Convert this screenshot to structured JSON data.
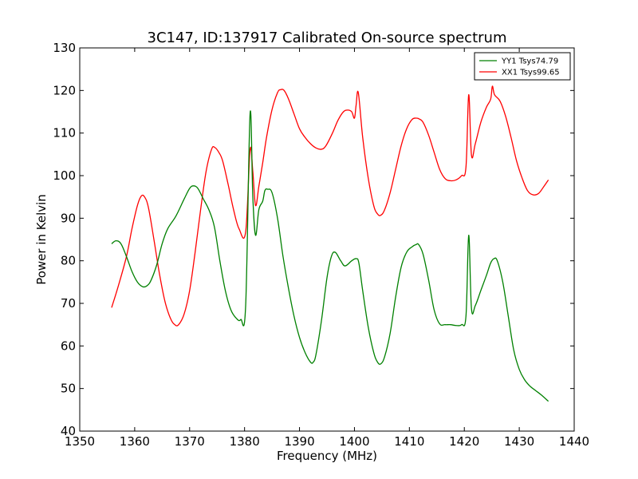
{
  "chart_data": {
    "type": "line",
    "title": "3C147, ID:137917 Calibrated On-source spectrum",
    "xlabel": "Frequency (MHz)",
    "ylabel": "Power in Kelvin",
    "xlim": [
      1350,
      1440
    ],
    "ylim": [
      40,
      130
    ],
    "xticks": [
      1350,
      1360,
      1370,
      1380,
      1390,
      1400,
      1410,
      1420,
      1430,
      1440
    ],
    "yticks": [
      40,
      50,
      60,
      70,
      80,
      90,
      100,
      110,
      120,
      130
    ],
    "grid": false,
    "legend_position": "top-right",
    "series": [
      {
        "name": "YY1 Tsys74.79",
        "color": "#008000",
        "x": [
          1355.8,
          1356.6,
          1357.5,
          1358.5,
          1359.5,
          1360.5,
          1361.5,
          1362.3,
          1363.0,
          1364.0,
          1365.0,
          1366.0,
          1367.5,
          1369.0,
          1370.0,
          1370.7,
          1371.5,
          1372.5,
          1373.5,
          1374.5,
          1375.5,
          1376.5,
          1377.5,
          1378.5,
          1379.3,
          1380.2,
          1381.0,
          1381.5,
          1382.0,
          1382.6,
          1383.3,
          1383.7,
          1384.2,
          1385.0,
          1386.0,
          1387.0,
          1388.0,
          1389.0,
          1390.0,
          1391.0,
          1392.0,
          1392.5,
          1393.0,
          1394.0,
          1395.0,
          1395.8,
          1396.5,
          1397.5,
          1398.3,
          1399.5,
          1400.3,
          1400.8,
          1401.5,
          1402.5,
          1403.5,
          1404.2,
          1404.8,
          1405.5,
          1406.5,
          1407.5,
          1408.5,
          1409.5,
          1410.5,
          1411.2,
          1411.7,
          1412.5,
          1413.5,
          1414.5,
          1415.5,
          1416.5,
          1417.5,
          1418.5,
          1419.5,
          1420.3,
          1420.8,
          1421.3,
          1422.0,
          1423.0,
          1424.0,
          1424.8,
          1425.4,
          1426.0,
          1427.0,
          1428.0,
          1429.0,
          1430.0,
          1431.0,
          1432.0,
          1433.0,
          1434.0,
          1435.3
        ],
        "values": [
          84.0,
          84.7,
          84.0,
          81.0,
          77.5,
          75.0,
          73.9,
          74.2,
          75.5,
          79.0,
          84.0,
          87.5,
          90.5,
          94.5,
          97.0,
          97.6,
          97.0,
          94.5,
          92.0,
          88.0,
          80.0,
          73.0,
          68.5,
          66.5,
          66.2,
          69.5,
          114.5,
          95.0,
          86.0,
          92.0,
          94.0,
          96.5,
          96.8,
          96.0,
          90.0,
          81.0,
          73.5,
          67.0,
          62.0,
          58.5,
          56.2,
          56.2,
          58.0,
          66.0,
          76.0,
          81.0,
          82.0,
          80.0,
          78.8,
          80.0,
          80.5,
          79.5,
          73.0,
          64.5,
          58.5,
          56.2,
          55.8,
          57.5,
          63.0,
          71.5,
          78.5,
          82.0,
          83.3,
          83.8,
          83.8,
          81.5,
          75.5,
          68.5,
          65.2,
          65.0,
          65.0,
          64.8,
          65.0,
          67.0,
          86.0,
          68.8,
          69.5,
          73.0,
          76.5,
          79.5,
          80.5,
          80.0,
          75.0,
          67.0,
          59.0,
          54.5,
          52.0,
          50.5,
          49.5,
          48.5,
          47.0
        ]
      },
      {
        "name": "XX1 Tsys99.65",
        "color": "#ff0000",
        "x": [
          1355.8,
          1357.0,
          1358.5,
          1359.5,
          1360.5,
          1361.2,
          1361.8,
          1362.5,
          1363.5,
          1364.5,
          1365.5,
          1366.5,
          1367.3,
          1368.0,
          1369.0,
          1370.0,
          1371.0,
          1372.0,
          1373.0,
          1374.0,
          1374.6,
          1375.3,
          1376.0,
          1377.0,
          1378.0,
          1379.0,
          1380.2,
          1381.0,
          1381.5,
          1382.0,
          1382.6,
          1383.3,
          1384.0,
          1385.0,
          1386.0,
          1386.6,
          1387.2,
          1388.0,
          1389.0,
          1390.0,
          1391.0,
          1392.0,
          1393.0,
          1394.0,
          1394.8,
          1396.0,
          1397.0,
          1398.0,
          1398.8,
          1399.5,
          1400.0,
          1400.3,
          1400.7,
          1401.5,
          1402.5,
          1403.5,
          1404.2,
          1404.8,
          1405.5,
          1406.5,
          1407.5,
          1408.5,
          1409.5,
          1410.5,
          1411.3,
          1411.8,
          1412.5,
          1413.5,
          1414.5,
          1415.5,
          1416.5,
          1417.5,
          1418.5,
          1419.5,
          1420.3,
          1420.8,
          1421.3,
          1422.0,
          1423.0,
          1424.0,
          1424.8,
          1425.1,
          1425.5,
          1426.5,
          1427.5,
          1428.5,
          1429.5,
          1430.5,
          1431.5,
          1432.5,
          1433.5,
          1434.5,
          1435.3
        ],
        "values": [
          69.0,
          74.0,
          81.0,
          87.5,
          93.0,
          95.2,
          95.0,
          92.5,
          85.0,
          77.0,
          70.5,
          66.5,
          65.0,
          65.0,
          67.5,
          73.0,
          82.0,
          92.0,
          101.0,
          106.2,
          106.6,
          105.5,
          103.5,
          98.0,
          92.0,
          87.5,
          86.8,
          106.0,
          101.0,
          93.0,
          97.5,
          103.0,
          109.0,
          115.5,
          119.5,
          120.2,
          120.0,
          118.0,
          114.5,
          111.0,
          109.0,
          107.5,
          106.5,
          106.2,
          107.0,
          110.0,
          113.0,
          115.0,
          115.4,
          115.0,
          113.5,
          116.5,
          119.5,
          109.0,
          99.5,
          93.0,
          91.0,
          90.7,
          92.0,
          96.0,
          101.5,
          107.0,
          111.0,
          113.2,
          113.5,
          113.3,
          112.5,
          109.5,
          105.5,
          101.5,
          99.3,
          98.8,
          99.0,
          100.0,
          102.0,
          119.0,
          104.8,
          107.5,
          112.5,
          116.0,
          118.0,
          121.0,
          119.0,
          117.5,
          114.0,
          109.0,
          103.5,
          99.5,
          96.5,
          95.5,
          95.8,
          97.5,
          99.0
        ]
      }
    ]
  }
}
